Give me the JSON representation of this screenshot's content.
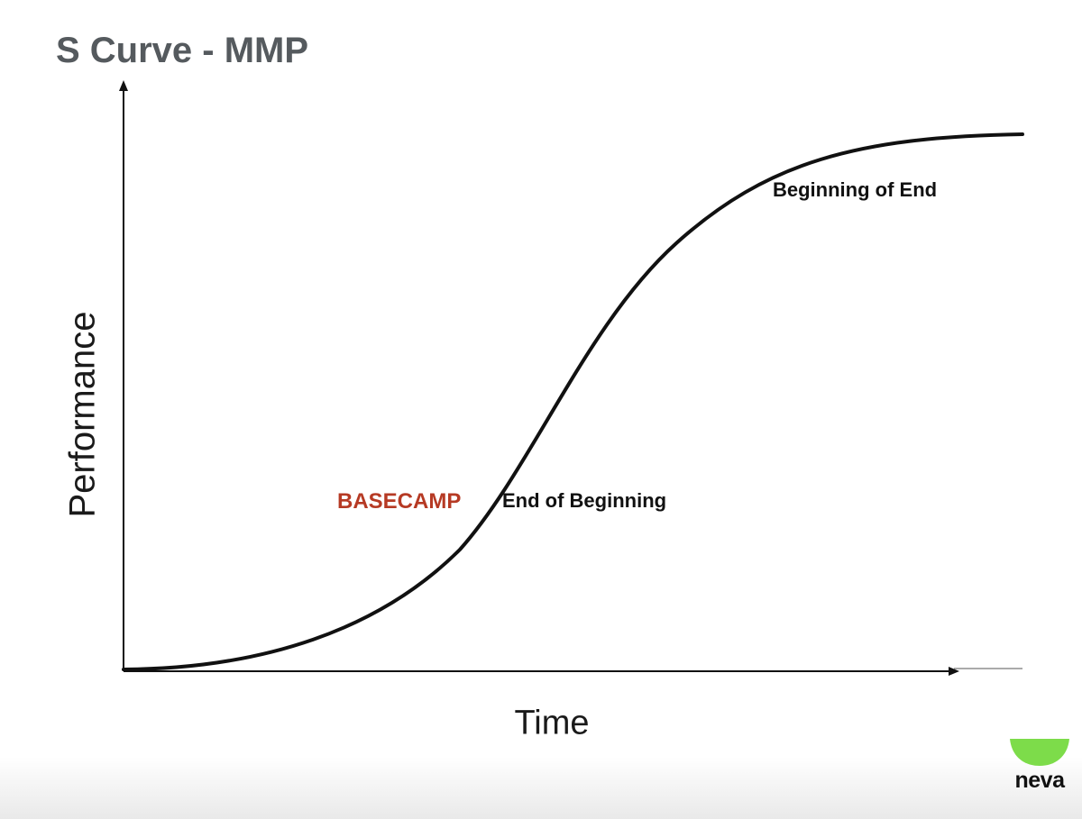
{
  "title": "S Curve - MMP",
  "axes": {
    "y_label": "Performance",
    "x_label": "Time"
  },
  "annotations": {
    "basecamp": "BASECAMP",
    "end_of_beginning": "End of Beginning",
    "beginning_of_end": "Beginning of End"
  },
  "logo": {
    "text": "neva",
    "color": "#7ddc4a"
  },
  "colors": {
    "title": "#555a5e",
    "basecamp": "#b63a24",
    "curve": "#111111"
  }
}
